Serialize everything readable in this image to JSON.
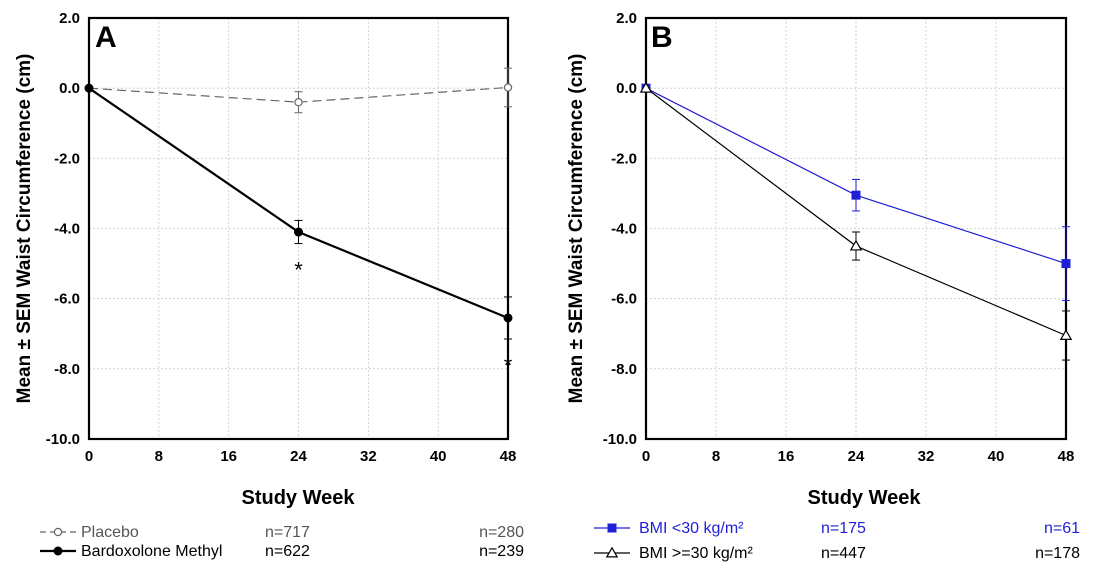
{
  "chart_data": [
    {
      "type": "line",
      "panel_label": "A",
      "xlabel": "Study Week",
      "ylabel": "Mean ± SEM Waist Circumference (cm)",
      "x": [
        0,
        24,
        48
      ],
      "xticks": [
        0,
        8,
        16,
        24,
        32,
        40,
        48
      ],
      "xlim": [
        0,
        48
      ],
      "ylim": [
        -10,
        2
      ],
      "yticks": [
        "2.0",
        "0.0",
        "-2.0",
        "-4.0",
        "-6.0",
        "-8.0",
        "-10.0"
      ],
      "grid": true,
      "series": [
        {
          "name": "Placebo",
          "values": [
            0.0,
            -0.4,
            0.02
          ],
          "sem": [
            0,
            0.3,
            0.55
          ],
          "color": "#666666",
          "style": "dashed",
          "marker": "open-circle",
          "n": [
            "n=717",
            "n=280"
          ]
        },
        {
          "name": "Bardoxolone Methyl",
          "values": [
            0.0,
            -4.1,
            -6.55
          ],
          "sem": [
            0,
            0.33,
            0.6
          ],
          "color": "#000000",
          "style": "solid",
          "marker": "filled-circle",
          "n": [
            "n=622",
            "n=239"
          ]
        }
      ],
      "annotations": [
        {
          "x": 24,
          "text": "*"
        },
        {
          "x": 48,
          "text": "*"
        }
      ]
    },
    {
      "type": "line",
      "panel_label": "B",
      "xlabel": "Study Week",
      "ylabel": "Mean ± SEM Waist Circumference (cm)",
      "x": [
        0,
        24,
        48
      ],
      "xticks": [
        0,
        8,
        16,
        24,
        32,
        40,
        48
      ],
      "xlim": [
        0,
        48
      ],
      "ylim": [
        -10,
        2
      ],
      "yticks": [
        "2.0",
        "0.0",
        "-2.0",
        "-4.0",
        "-6.0",
        "-8.0",
        "-10.0"
      ],
      "grid": true,
      "series": [
        {
          "name": "BMI <30 kg/m²",
          "values": [
            0.0,
            -3.05,
            -5.0
          ],
          "sem": [
            0,
            0.45,
            1.05
          ],
          "color": "#1f1fd6",
          "style": "solid",
          "marker": "filled-square",
          "n": [
            "n=175",
            "n=61"
          ]
        },
        {
          "name": "BMI >=30 kg/m²",
          "values": [
            0.0,
            -4.5,
            -7.05
          ],
          "sem": [
            0,
            0.4,
            0.7
          ],
          "color": "#000000",
          "style": "solid",
          "marker": "open-triangle",
          "n": [
            "n=447",
            "n=178"
          ]
        }
      ]
    }
  ]
}
